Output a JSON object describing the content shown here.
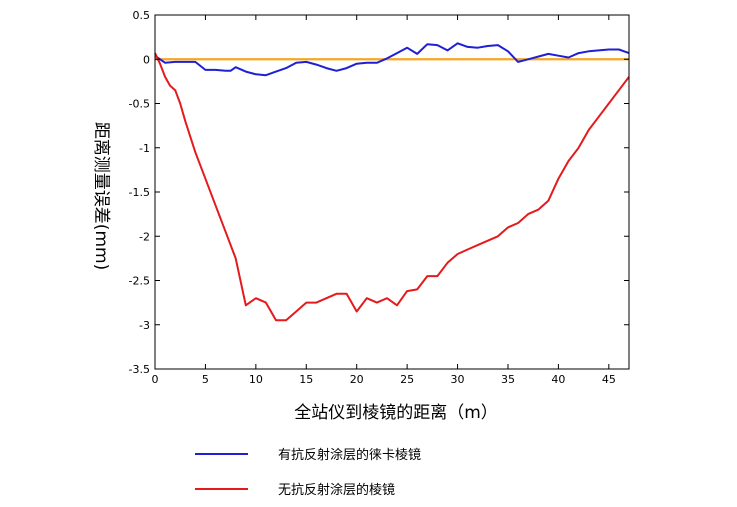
{
  "chart_data": {
    "type": "line",
    "title": "",
    "xlabel": "全站仪到棱镜的距离（m）",
    "ylabel": "距离测量误差(mm)",
    "xlim": [
      0,
      47
    ],
    "ylim": [
      -3.5,
      0.5
    ],
    "xticks": [
      "0",
      "5",
      "10",
      "15",
      "20",
      "25",
      "30",
      "35",
      "40",
      "45"
    ],
    "yticks": [
      "0.5",
      "0",
      "-0.5",
      "-1",
      "-1.5",
      "-2",
      "-2.5",
      "-3",
      "-3.5"
    ],
    "grid": false,
    "legend_position": "bottom",
    "reference_line": {
      "y": 0,
      "color": "#f5a623"
    },
    "series": [
      {
        "name": "有抗反射涂层的徕卡棱镜",
        "color": "#1f1fd6",
        "x": [
          0,
          0.5,
          1,
          2,
          3,
          4,
          5,
          6,
          7,
          7.5,
          8,
          9,
          10,
          11,
          12,
          13,
          14,
          15,
          16,
          17,
          18,
          19,
          20,
          21,
          22,
          23,
          24,
          25,
          26,
          27,
          28,
          29,
          30,
          31,
          32,
          33,
          34,
          35,
          36,
          37,
          38,
          39,
          40,
          41,
          42,
          43,
          44,
          45,
          46,
          47
        ],
        "values": [
          0.04,
          0.0,
          -0.04,
          -0.03,
          -0.03,
          -0.03,
          -0.12,
          -0.12,
          -0.13,
          -0.13,
          -0.09,
          -0.14,
          -0.17,
          -0.18,
          -0.14,
          -0.1,
          -0.04,
          -0.03,
          -0.06,
          -0.1,
          -0.13,
          -0.1,
          -0.05,
          -0.04,
          -0.04,
          0.01,
          0.07,
          0.13,
          0.06,
          0.17,
          0.16,
          0.1,
          0.18,
          0.14,
          0.13,
          0.15,
          0.16,
          0.09,
          -0.03,
          0.0,
          0.03,
          0.06,
          0.04,
          0.02,
          0.07,
          0.09,
          0.1,
          0.11,
          0.11,
          0.07
        ]
      },
      {
        "name": "无抗反射涂层的棱镜",
        "color": "#e41a1c",
        "x": [
          0,
          0.5,
          1,
          1.5,
          2,
          2.5,
          3,
          4,
          5,
          6,
          7,
          8,
          9,
          10,
          11,
          12,
          13,
          14,
          15,
          16,
          17,
          18,
          19,
          20,
          21,
          22,
          23,
          24,
          25,
          26,
          27,
          28,
          29,
          30,
          31,
          32,
          33,
          34,
          35,
          36,
          37,
          38,
          39,
          40,
          41,
          42,
          43,
          44,
          45,
          46,
          47
        ],
        "values": [
          0.07,
          -0.05,
          -0.2,
          -0.3,
          -0.35,
          -0.5,
          -0.7,
          -1.05,
          -1.35,
          -1.65,
          -1.95,
          -2.25,
          -2.78,
          -2.7,
          -2.75,
          -2.95,
          -2.95,
          -2.85,
          -2.75,
          -2.75,
          -2.7,
          -2.65,
          -2.65,
          -2.85,
          -2.7,
          -2.75,
          -2.7,
          -2.78,
          -2.62,
          -2.6,
          -2.45,
          -2.45,
          -2.3,
          -2.2,
          -2.15,
          -2.1,
          -2.05,
          -2.0,
          -1.9,
          -1.85,
          -1.75,
          -1.7,
          -1.6,
          -1.35,
          -1.15,
          -1.0,
          -0.8,
          -0.65,
          -0.5,
          -0.35,
          -0.2
        ]
      }
    ]
  }
}
